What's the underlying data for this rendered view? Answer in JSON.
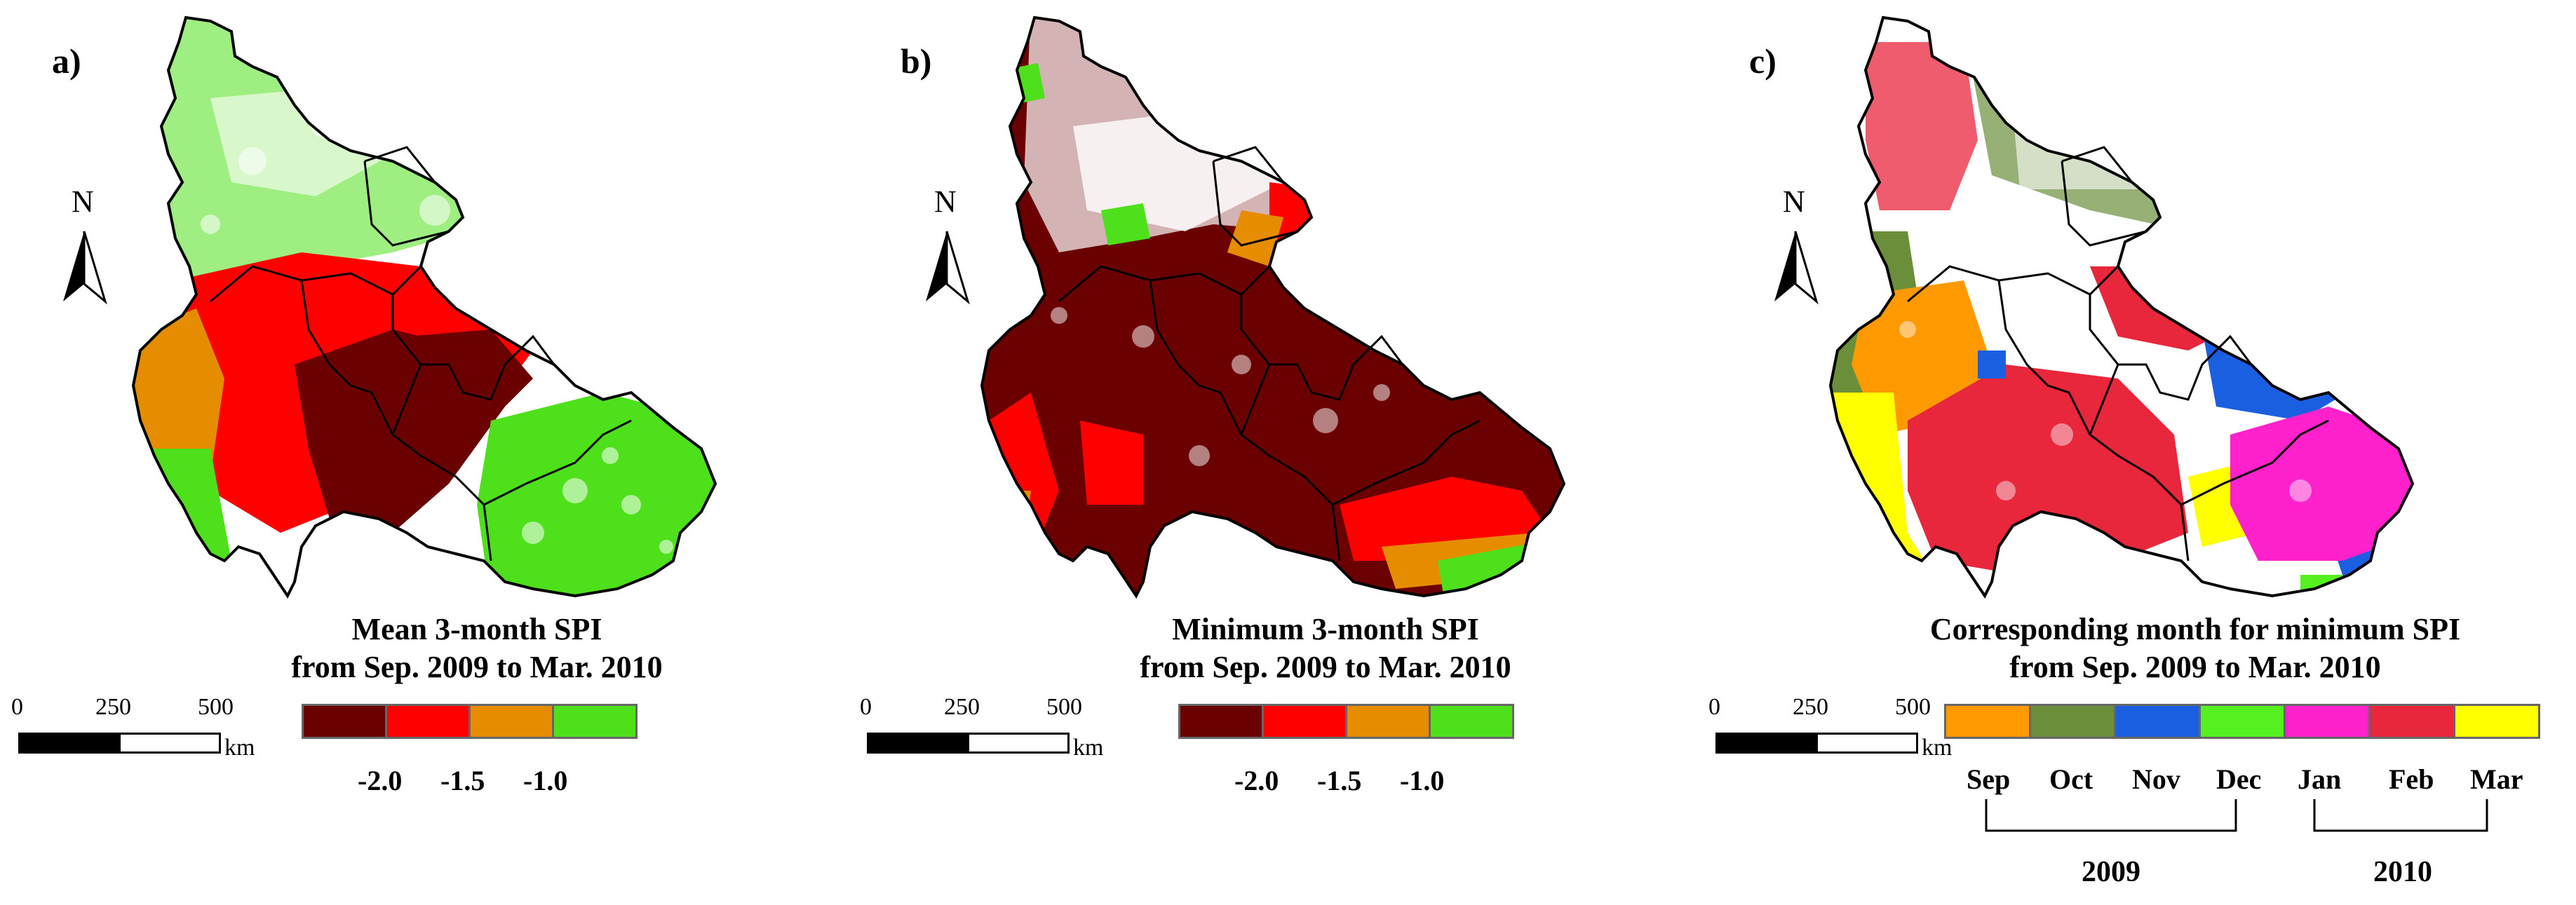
{
  "colors": {
    "spi_extreme": "#6b0000",
    "spi_severe": "#ff0000",
    "spi_moderate": "#e68c00",
    "spi_mild": "#4ee01a",
    "sep": "#ff9900",
    "oct": "#6b8e3a",
    "nov": "#1a5fe0",
    "dec": "#55f020",
    "jan": "#ff22cc",
    "feb": "#e8263c",
    "mar": "#ffff00",
    "boundary": "#000000"
  },
  "north_label": "N",
  "scale": {
    "ticks": [
      "0",
      "250",
      "500"
    ],
    "unit": "km"
  },
  "panels": [
    {
      "letter": "a)",
      "title_line1": "Mean 3-month SPI",
      "title_line2": "from Sep. 2009 to Mar. 2010",
      "legend_ticks": [
        "-2.0",
        "-1.5",
        "-1.0"
      ]
    },
    {
      "letter": "b)",
      "title_line1": "Minimum 3-month SPI",
      "title_line2": "from Sep. 2009 to Mar. 2010",
      "legend_ticks": [
        "-2.0",
        "-1.5",
        "-1.0"
      ]
    },
    {
      "letter": "c)",
      "title_line1": "Corresponding month for minimum SPI",
      "title_line2": "from Sep. 2009 to Mar. 2010",
      "months": [
        "Sep",
        "Oct",
        "Nov",
        "Dec",
        "Jan",
        "Feb",
        "Mar"
      ],
      "years": [
        "2009",
        "2010"
      ]
    }
  ]
}
